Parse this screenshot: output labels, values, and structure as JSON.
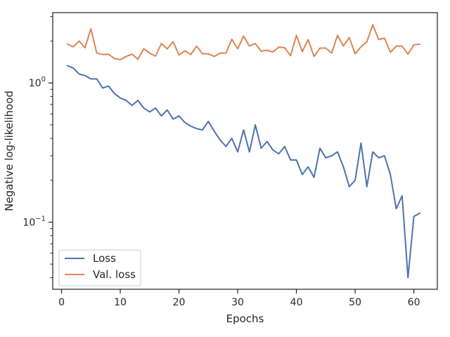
{
  "chart_data": {
    "type": "line",
    "xlabel": "Epochs",
    "ylabel": "Negative log-likelihood",
    "xlim": [
      -1.5,
      64.0
    ],
    "ylim": [
      0.033,
      3.2
    ],
    "yscale": "log",
    "x_ticks": [
      0,
      10,
      20,
      30,
      40,
      50,
      60
    ],
    "x_tick_labels": [
      "0",
      "10",
      "20",
      "30",
      "40",
      "50",
      "60"
    ],
    "y_major_ticks": [
      0.1,
      1
    ],
    "y_tick_base": "10",
    "y_tick_exponents": [
      "−1",
      "0"
    ],
    "legend_location": "lower-left",
    "grid": false,
    "x": [
      1,
      2,
      3,
      4,
      5,
      6,
      7,
      8,
      9,
      10,
      11,
      12,
      13,
      14,
      15,
      16,
      17,
      18,
      19,
      20,
      21,
      22,
      23,
      24,
      25,
      26,
      27,
      28,
      29,
      30,
      31,
      32,
      33,
      34,
      35,
      36,
      37,
      38,
      39,
      40,
      41,
      42,
      43,
      44,
      45,
      46,
      47,
      48,
      49,
      50,
      51,
      52,
      53,
      54,
      55,
      56,
      57,
      58,
      59,
      60,
      61
    ],
    "series": [
      {
        "name": "Loss",
        "color": "#4c72b0",
        "values": [
          1.33,
          1.28,
          1.16,
          1.13,
          1.07,
          1.07,
          0.92,
          0.95,
          0.84,
          0.78,
          0.75,
          0.69,
          0.75,
          0.66,
          0.62,
          0.66,
          0.58,
          0.64,
          0.55,
          0.58,
          0.52,
          0.49,
          0.47,
          0.46,
          0.53,
          0.45,
          0.39,
          0.35,
          0.4,
          0.32,
          0.46,
          0.32,
          0.5,
          0.34,
          0.38,
          0.33,
          0.31,
          0.35,
          0.28,
          0.28,
          0.22,
          0.25,
          0.21,
          0.34,
          0.29,
          0.3,
          0.32,
          0.25,
          0.18,
          0.2,
          0.37,
          0.18,
          0.32,
          0.29,
          0.3,
          0.22,
          0.125,
          0.155,
          0.04,
          0.11,
          0.116
        ]
      },
      {
        "name": "Val. loss",
        "color": "#dd8452",
        "values": [
          1.9,
          1.82,
          2.0,
          1.79,
          2.45,
          1.64,
          1.6,
          1.61,
          1.5,
          1.47,
          1.55,
          1.61,
          1.48,
          1.76,
          1.64,
          1.56,
          1.92,
          1.76,
          1.98,
          1.59,
          1.7,
          1.6,
          1.84,
          1.62,
          1.62,
          1.55,
          1.64,
          1.64,
          2.06,
          1.76,
          2.17,
          1.84,
          1.92,
          1.69,
          1.72,
          1.67,
          1.81,
          1.79,
          1.57,
          2.2,
          1.68,
          2.05,
          1.55,
          1.78,
          1.78,
          1.64,
          2.2,
          1.84,
          2.12,
          1.62,
          1.82,
          1.98,
          2.62,
          2.05,
          2.1,
          1.66,
          1.84,
          1.84,
          1.61,
          1.88,
          1.9
        ]
      }
    ]
  }
}
